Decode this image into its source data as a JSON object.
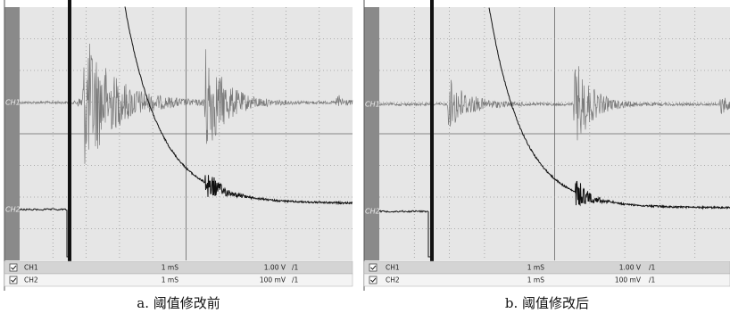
{
  "panels": [
    {
      "caption": "a. 阈值修改前",
      "channel_labels": [
        "CH1",
        "CH2"
      ],
      "rows": [
        [
          "CH1",
          "1 mS",
          "1.00 V",
          "/1"
        ],
        [
          "CH2",
          "1 mS",
          "100 mV",
          "/1"
        ]
      ]
    },
    {
      "caption": "b. 阈值修改后",
      "channel_labels": [
        "CH1",
        "CH2"
      ],
      "rows": [
        [
          "CH1",
          "1 mS",
          "1.00 V",
          "/1"
        ],
        [
          "CH2",
          "1 mS",
          "100 mV",
          "/1"
        ]
      ]
    }
  ]
}
